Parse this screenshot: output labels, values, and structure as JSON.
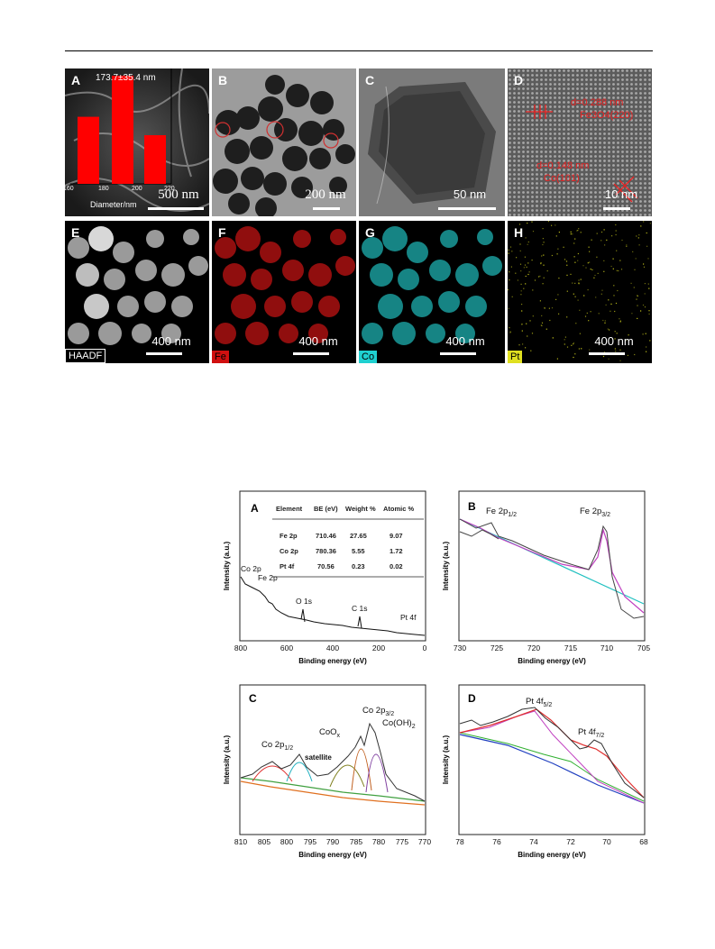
{
  "figure1": {
    "panelA": {
      "label": "A",
      "hist_title": "173.7±35.4 nm",
      "xlabel": "Diameter/nm",
      "xticks": [
        "160",
        "180",
        "200",
        "220"
      ],
      "scale": "500 nm"
    },
    "panelB": {
      "label": "B",
      "scale": "200 nm"
    },
    "panelC": {
      "label": "C",
      "scale": "50 nm"
    },
    "panelD": {
      "label": "D",
      "scale": "10 nm",
      "ann1a": "d=0.288 nm",
      "ann1b": "Fe3O4(220)",
      "ann2a": "d=0.148 nm",
      "ann2b": "Co(101)"
    },
    "panelE": {
      "label": "E",
      "scale": "400 nm",
      "tag": "HAADF"
    },
    "panelF": {
      "label": "F",
      "scale": "400 nm",
      "tag": "Fe"
    },
    "panelG": {
      "label": "G",
      "scale": "400 nm",
      "tag": "Co"
    },
    "panelH": {
      "label": "H",
      "scale": "400 nm",
      "tag": "Pt"
    },
    "colors": {
      "fe": "#ff1a1a",
      "co": "#1fd0d0",
      "pt": "#e0e020"
    }
  },
  "chart_data": [
    {
      "type": "bar",
      "panel": "A",
      "title": "173.7±35.4 nm",
      "xlabel": "Diameter/nm",
      "categories": [
        "170",
        "190",
        "210"
      ],
      "values": [
        62,
        100,
        45
      ],
      "xticks": [
        160,
        180,
        200,
        220
      ]
    },
    {
      "type": "line",
      "panel": "A",
      "xlabel": "Binding energy (eV)",
      "ylabel": "Intensity (a.u.)",
      "xlim": [
        800,
        0
      ],
      "xticks": [
        800,
        600,
        400,
        200,
        0
      ],
      "peaks": [
        {
          "label": "Co 2p",
          "x": 780
        },
        {
          "label": "Fe 2p",
          "x": 711
        },
        {
          "label": "O 1s",
          "x": 531
        },
        {
          "label": "C 1s",
          "x": 285
        },
        {
          "label": "Pt 4f",
          "x": 71
        }
      ],
      "table": {
        "headers": [
          "Element",
          "BE (eV)",
          "Weight %",
          "Atomic %"
        ],
        "rows": [
          [
            "Fe 2p",
            "710.46",
            "27.65",
            "9.07"
          ],
          [
            "Co 2p",
            "780.36",
            "5.55",
            "1.72"
          ],
          [
            "Pt 4f",
            "70.56",
            "0.23",
            "0.02"
          ]
        ]
      }
    },
    {
      "type": "line",
      "panel": "B",
      "xlabel": "Binding energy (eV)",
      "ylabel": "Intensity (a.u.)",
      "xlim": [
        730,
        705
      ],
      "xticks": [
        730,
        725,
        720,
        715,
        710,
        705
      ],
      "peaks": [
        {
          "label": "Fe 2p1/2",
          "x": 724.5
        },
        {
          "label": "Fe 2p3/2",
          "x": 710.5
        }
      ]
    },
    {
      "type": "line",
      "panel": "C",
      "xlabel": "Binding energy (eV)",
      "ylabel": "Intensity (a.u.)",
      "xlim": [
        810,
        770
      ],
      "xticks": [
        810,
        805,
        800,
        795,
        790,
        785,
        780,
        775,
        770
      ],
      "peaks": [
        {
          "label": "Co 2p1/2",
          "x": 796.5
        },
        {
          "label": "CoOx",
          "x": 784
        },
        {
          "label": "satellite",
          "x": 788
        },
        {
          "label": "Co 2p3/2",
          "x": 781
        },
        {
          "label": "Co(OH)2",
          "x": 779.5
        }
      ]
    },
    {
      "type": "line",
      "panel": "D",
      "xlabel": "Binding energy (eV)",
      "ylabel": "Intensity (a.u.)",
      "xlim": [
        78,
        68
      ],
      "xticks": [
        78,
        76,
        74,
        72,
        70,
        68
      ],
      "peaks": [
        {
          "label": "Pt 4f5/2",
          "x": 74.3
        },
        {
          "label": "Pt 4f7/2",
          "x": 71
        }
      ]
    }
  ],
  "xps": {
    "A": {
      "label": "A",
      "xlabel": "Binding energy (eV)",
      "ylabel": "Intensity (a.u.)",
      "p_co": "Co 2p",
      "p_fe": "Fe 2p",
      "p_o": "O 1s",
      "p_c": "C 1s",
      "p_pt": "Pt 4f",
      "t_h0": "Element",
      "t_h1": "BE (eV)",
      "t_h2": "Weight %",
      "t_h3": "Atomic %",
      "r0c0": "Fe 2p",
      "r0c1": "710.46",
      "r0c2": "27.65",
      "r0c3": "9.07",
      "r1c0": "Co 2p",
      "r1c1": "780.36",
      "r1c2": "5.55",
      "r1c3": "1.72",
      "r2c0": "Pt 4f",
      "r2c1": "70.56",
      "r2c2": "0.23",
      "r2c3": "0.02",
      "t0": "800",
      "t1": "600",
      "t2": "400",
      "t3": "200",
      "t4": "0"
    },
    "B": {
      "label": "B",
      "xlabel": "Binding energy (eV)",
      "ylabel": "Intensity (a.u.)",
      "p1": "Fe 2p",
      "p1s": "1/2",
      "p2": "Fe 2p",
      "p2s": "3/2",
      "t0": "730",
      "t1": "725",
      "t2": "720",
      "t3": "715",
      "t4": "710",
      "t5": "705"
    },
    "C": {
      "label": "C",
      "xlabel": "Binding energy (eV)",
      "ylabel": "Intensity (a.u.)",
      "p1": "Co 2p",
      "p1s": "1/2",
      "p2": "CoO",
      "p2s": "x",
      "p3": "satellite",
      "p4": "Co 2p",
      "p4s": "3/2",
      "p5": "Co(OH)",
      "p5s": "2",
      "t0": "810",
      "t1": "805",
      "t2": "800",
      "t3": "795",
      "t4": "790",
      "t5": "785",
      "t6": "780",
      "t7": "775",
      "t8": "770"
    },
    "D": {
      "label": "D",
      "xlabel": "Binding energy (eV)",
      "ylabel": "Intensity (a.u.)",
      "p1": "Pt 4f",
      "p1s": "5/2",
      "p2": "Pt 4f",
      "p2s": "7/2",
      "t0": "78",
      "t1": "76",
      "t2": "74",
      "t3": "72",
      "t4": "70",
      "t5": "68"
    }
  }
}
